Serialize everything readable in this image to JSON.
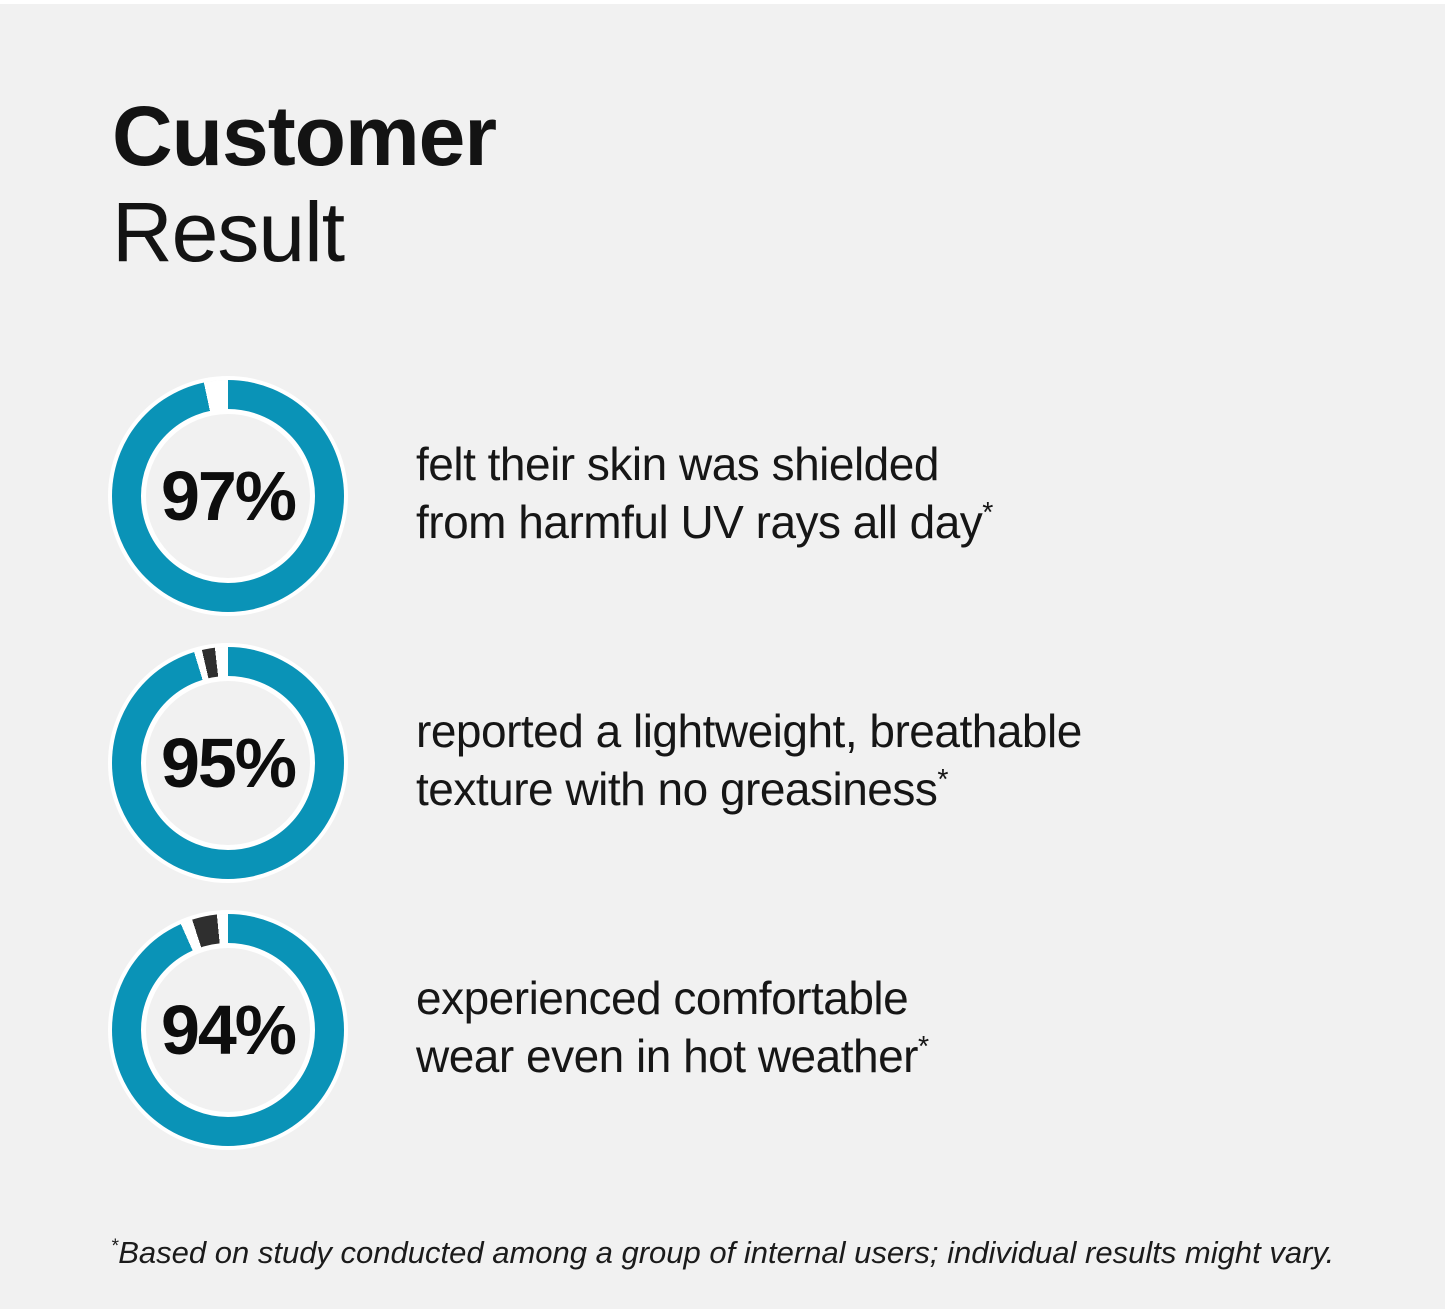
{
  "title": {
    "line1": "Customer",
    "line2": "Result"
  },
  "colors": {
    "background": "#f1f1f1",
    "ring": "#0a93b7",
    "remainder": "#2f2f2f",
    "separator": "#ffffff",
    "text": "#131313"
  },
  "chart_data": {
    "type": "pie",
    "subtype": "donut",
    "title": "Customer Result",
    "legend": "none",
    "palette": {
      "ring": "#0a93b7",
      "gap": "#ffffff",
      "remainder": "#2f2f2f"
    },
    "charts": [
      {
        "label": "97%",
        "value": 97,
        "remainder": 3,
        "caption": "felt their skin was shielded from harmful UV rays all day*",
        "caption_lines": [
          "felt their skin was shielded",
          "from harmful UV rays all day"
        ],
        "segments": [
          [
            "ring",
            0,
            348
          ],
          [
            "gap",
            348,
            360
          ]
        ]
      },
      {
        "label": "95%",
        "value": 95,
        "remainder": 5,
        "caption": "reported a lightweight, breathable texture with no greasiness*",
        "caption_lines": [
          "reported a lightweight, breathable",
          "texture with no greasiness"
        ],
        "segments": [
          [
            "ring",
            0,
            343
          ],
          [
            "gap",
            343,
            347
          ],
          [
            "remainder",
            347,
            353.5
          ],
          [
            "gap",
            353.5,
            360
          ]
        ]
      },
      {
        "label": "94%",
        "value": 94,
        "remainder": 6,
        "caption": "experienced comfortable wear even in hot weather*",
        "caption_lines": [
          "experienced comfortable",
          "wear even in hot weather"
        ],
        "segments": [
          [
            "ring",
            0,
            336
          ],
          [
            "gap",
            336,
            342
          ],
          [
            "remainder",
            342,
            354.5
          ],
          [
            "gap",
            354.5,
            360
          ]
        ]
      }
    ]
  },
  "footnote": {
    "marker": "*",
    "text": "Based on study conducted among a group of internal users; individual results might vary."
  }
}
